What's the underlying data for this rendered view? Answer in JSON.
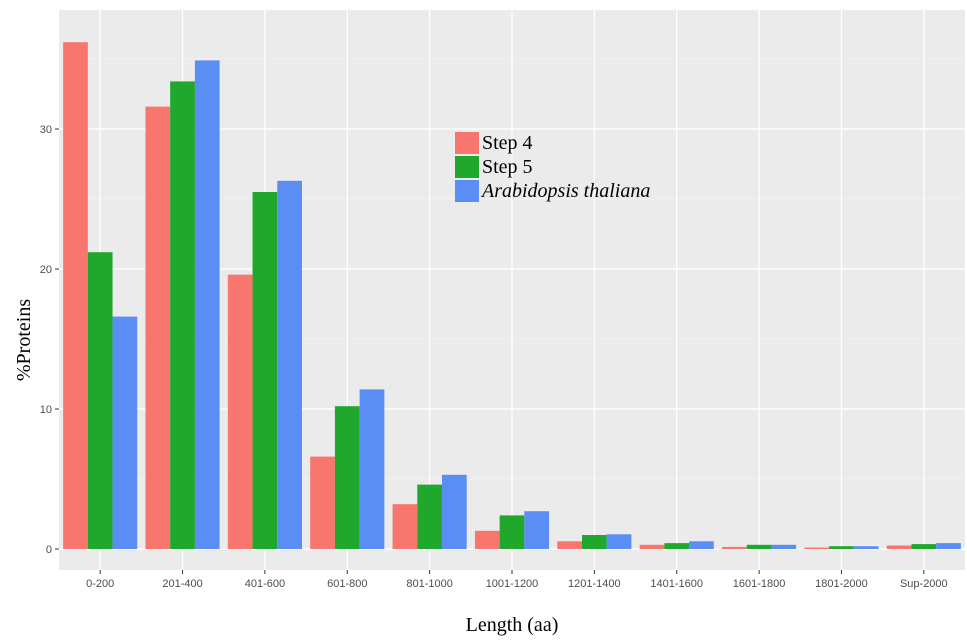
{
  "chart_data": {
    "type": "bar",
    "title": "",
    "xlabel": "Length (aa)",
    "ylabel": "%Proteins",
    "ylim": [
      -1.5,
      38.5
    ],
    "yticks": [
      0,
      10,
      20,
      30
    ],
    "grid": true,
    "legend_position": "top-center",
    "categories": [
      "0-200",
      "201-400",
      "401-600",
      "601-800",
      "801-1000",
      "1001-1200",
      "1201-1400",
      "1401-1600",
      "1601-1800",
      "1801-2000",
      "Sup-2000"
    ],
    "series": [
      {
        "name": "Step 4",
        "color": "#f8766d",
        "italic": false,
        "values": [
          36.2,
          31.6,
          19.6,
          6.6,
          3.2,
          1.3,
          0.55,
          0.3,
          0.15,
          0.1,
          0.25
        ]
      },
      {
        "name": "Step 5",
        "color": "#1fa82b",
        "italic": false,
        "values": [
          21.2,
          33.4,
          25.5,
          10.2,
          4.6,
          2.4,
          1.0,
          0.42,
          0.3,
          0.2,
          0.35
        ]
      },
      {
        "name": "Arabidopsis thaliana",
        "color": "#5b8ef5",
        "italic": true,
        "values": [
          16.6,
          34.9,
          26.3,
          11.4,
          5.3,
          2.7,
          1.05,
          0.55,
          0.3,
          0.2,
          0.42
        ]
      }
    ]
  }
}
